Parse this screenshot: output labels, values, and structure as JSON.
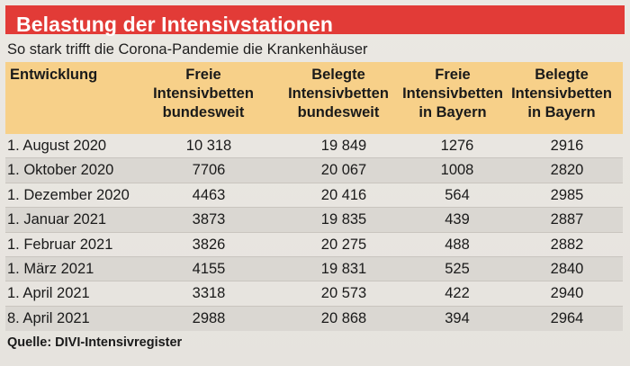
{
  "title": "Belastung der Intensivstationen",
  "subtitle": "So stark trifft die Corona-Pandemie die Krankenhäuser",
  "accent_color": "#e23b37",
  "header_color": "#f7d089",
  "columns": [
    [
      "Entwicklung"
    ],
    [
      "Freie",
      "Intensivbetten",
      "bundesweit"
    ],
    [
      "Belegte",
      "Intensivbetten",
      "bundesweit"
    ],
    [
      "Freie",
      "Intensivbetten",
      "in Bayern"
    ],
    [
      "Belegte",
      "Intensivbetten",
      "in Bayern"
    ]
  ],
  "rows": [
    [
      "1. August 2020",
      "10 318",
      "19 849",
      "1276",
      "2916"
    ],
    [
      "1. Oktober 2020",
      "7706",
      "20 067",
      "1008",
      "2820"
    ],
    [
      "1. Dezember 2020",
      "4463",
      "20 416",
      "564",
      "2985"
    ],
    [
      "1. Januar 2021",
      "3873",
      "19 835",
      "439",
      "2887"
    ],
    [
      "1. Februar 2021",
      "3826",
      "20 275",
      "488",
      "2882"
    ],
    [
      "1. März 2021",
      "4155",
      "19 831",
      "525",
      "2840"
    ],
    [
      "1. April 2021",
      "3318",
      "20 573",
      "422",
      "2940"
    ],
    [
      "8. April 2021",
      "2988",
      "20 868",
      "394",
      "2964"
    ]
  ],
  "source": "Quelle: DIVI-Intensivregister"
}
